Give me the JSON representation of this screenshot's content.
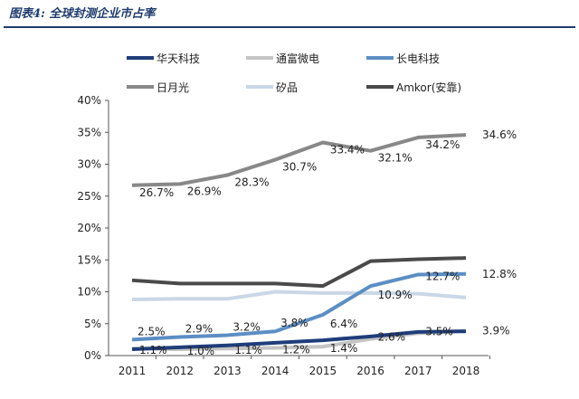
{
  "figure_title": "图表4: 全球封测企业市占率",
  "chart_data": {
    "type": "line",
    "title": "",
    "xlabel": "",
    "ylabel": "",
    "categories": [
      "2011",
      "2012",
      "2013",
      "2014",
      "2015",
      "2016",
      "2017",
      "2018"
    ],
    "ylim": [
      0,
      40
    ],
    "yticks": [
      "0%",
      "5%",
      "10%",
      "15%",
      "20%",
      "25%",
      "30%",
      "35%",
      "40%"
    ],
    "grid": false,
    "legend_placement": "top",
    "series": [
      {
        "name": "华天科技",
        "color": "#1f3d7a",
        "values": [
          1.0,
          1.3,
          1.6,
          2.0,
          2.4,
          3.0,
          3.7,
          3.8
        ],
        "labels": null
      },
      {
        "name": "通富微电",
        "color": "#c4c4c4",
        "values": [
          1.1,
          1.0,
          1.1,
          1.2,
          1.4,
          2.6,
          3.5,
          3.9
        ],
        "labels": [
          "1.1%",
          "1.0%",
          "1.1%",
          "1.2%",
          "1.4%",
          "2.6%",
          "3.5%",
          "3.9%"
        ]
      },
      {
        "name": "长电科技",
        "color": "#5b8ec4",
        "values": [
          2.5,
          2.9,
          3.2,
          3.8,
          6.4,
          10.9,
          12.7,
          12.8
        ],
        "labels": [
          "2.5%",
          "2.9%",
          "3.2%",
          "3.8%",
          "6.4%",
          "10.9%",
          "12.7%",
          "12.8%"
        ]
      },
      {
        "name": "日月光",
        "color": "#888888",
        "values": [
          26.7,
          26.9,
          28.3,
          30.7,
          33.4,
          32.1,
          34.2,
          34.6
        ],
        "labels": [
          "26.7%",
          "26.9%",
          "28.3%",
          "30.7%",
          "33.4%",
          "32.1%",
          "34.2%",
          "34.6%"
        ]
      },
      {
        "name": "矽品",
        "color": "#c9d7e6",
        "values": [
          8.8,
          8.9,
          8.9,
          10.0,
          9.8,
          9.8,
          9.7,
          9.1
        ],
        "labels": null
      },
      {
        "name": "Amkor(安靠)",
        "color": "#4a4a4a",
        "values": [
          11.8,
          11.3,
          11.3,
          11.3,
          10.9,
          14.8,
          15.1,
          15.3
        ],
        "labels": null
      }
    ]
  }
}
